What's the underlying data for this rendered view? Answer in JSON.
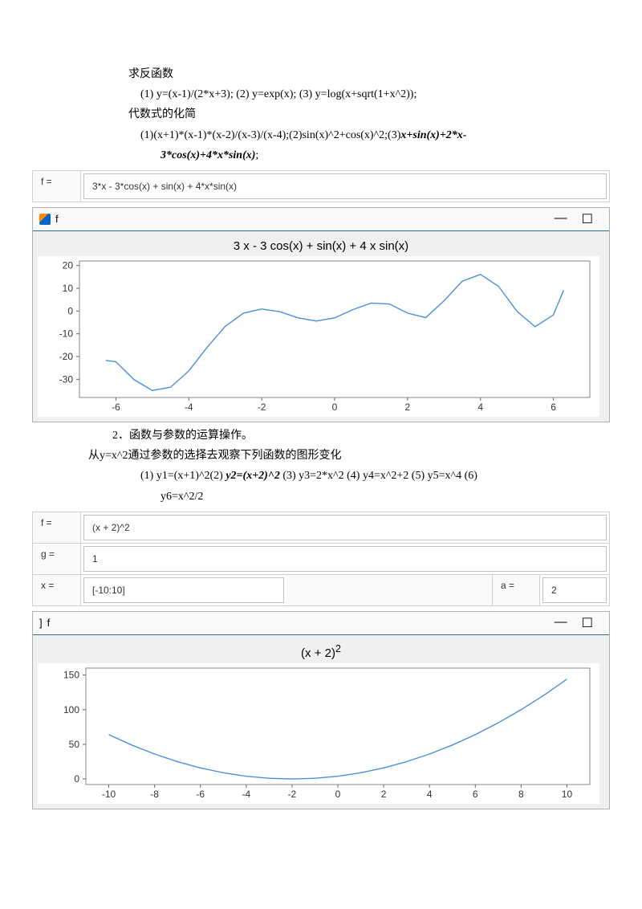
{
  "text": {
    "inverse_heading": "求反函数",
    "inverse_items": "(1)  y=(x-1)/(2*x+3); (2) y=exp(x); (3) y=log(x+sqrt(1+x^2));",
    "simplify_heading": "代数式的化简",
    "simplify_items_a": "(1)(x+1)*(x-1)*(x-2)/(x-3)/(x-4);(2)sin(x)^2+cos(x)^2;(3)",
    "simplify_items_b": "x+sin(x)+2*x-",
    "simplify_items_c": "3*cos(x)+4*x*sin(x)",
    "simplify_items_d": ";",
    "section2": "2．函数与参数的运算操作。",
    "section2_sub": "从y=x^2通过参数的选择去观察下列函数的图形变化",
    "section2_items_a": "(1) y1=(x+1)^2(2)",
    "section2_items_b": " y2=(x+2)^2 ",
    "section2_items_c": "(3) y3=2*x^2 (4) y4=x^2+2 (5) y5=x^4 (6)",
    "section2_items_d": "y6=x^2/2"
  },
  "panel1": {
    "f_label": "f =",
    "f_value": "3*x - 3*cos(x) + sin(x) + 4*x*sin(x)"
  },
  "panel2": {
    "f_label": "f =",
    "f_value": "(x + 2)^2",
    "g_label": "g =",
    "g_value": "1",
    "x_label": "x =",
    "x_value": "[-10:10]",
    "a_label": "a =",
    "a_value": "2"
  },
  "fig1": {
    "window_title": "f",
    "title": "3 x - 3 cos(x) + sin(x) + 4 x sin(x)",
    "colors": {
      "line": "#4a90d9",
      "grid": "#e8e8e8",
      "axis": "#666666",
      "bg": "#ffffff"
    },
    "xlim": [
      -7,
      7
    ],
    "ylim": [
      -38,
      22
    ],
    "xticks": [
      -6,
      -4,
      -2,
      0,
      2,
      4,
      6
    ],
    "yticks": [
      -30,
      -20,
      -10,
      0,
      10,
      20
    ],
    "data_x": [
      -6.28,
      -6.0,
      -5.5,
      -5.0,
      -4.5,
      -4.0,
      -3.5,
      -3.0,
      -2.5,
      -2.0,
      -1.5,
      -1.0,
      -0.5,
      0,
      0.5,
      1.0,
      1.5,
      2.0,
      2.5,
      3.0,
      3.5,
      4.0,
      4.5,
      5.0,
      5.5,
      6.0,
      6.28
    ],
    "data_y": [
      -21.7,
      -22.3,
      -30.2,
      -34.9,
      -33.5,
      -26.3,
      -16.0,
      -6.7,
      -0.9,
      0.9,
      -0.3,
      -3.0,
      -4.4,
      -3.0,
      0.6,
      3.5,
      3.1,
      -0.9,
      -2.9,
      4.5,
      13.1,
      16.1,
      10.8,
      -0.1,
      -6.9,
      -1.7,
      9.1
    ]
  },
  "fig2": {
    "window_title": "f",
    "title_base": "(x + 2)",
    "title_exp": "2",
    "colors": {
      "line": "#4a90d9",
      "grid": "#e8e8e8",
      "axis": "#666666",
      "bg": "#ffffff"
    },
    "xlim": [
      -11,
      11
    ],
    "ylim": [
      -8,
      160
    ],
    "xticks": [
      -10,
      -8,
      -6,
      -4,
      -2,
      0,
      2,
      4,
      6,
      8,
      10
    ],
    "yticks": [
      0,
      50,
      100,
      150
    ],
    "data_x": [
      -10,
      -9,
      -8,
      -7,
      -6,
      -5,
      -4,
      -3,
      -2,
      -1,
      0,
      1,
      2,
      3,
      4,
      5,
      6,
      7,
      8,
      9,
      10
    ],
    "data_y": [
      64,
      49,
      36,
      25,
      16,
      9,
      4,
      1,
      0,
      1,
      4,
      9,
      16,
      25,
      36,
      49,
      64,
      81,
      100,
      121,
      144
    ]
  }
}
